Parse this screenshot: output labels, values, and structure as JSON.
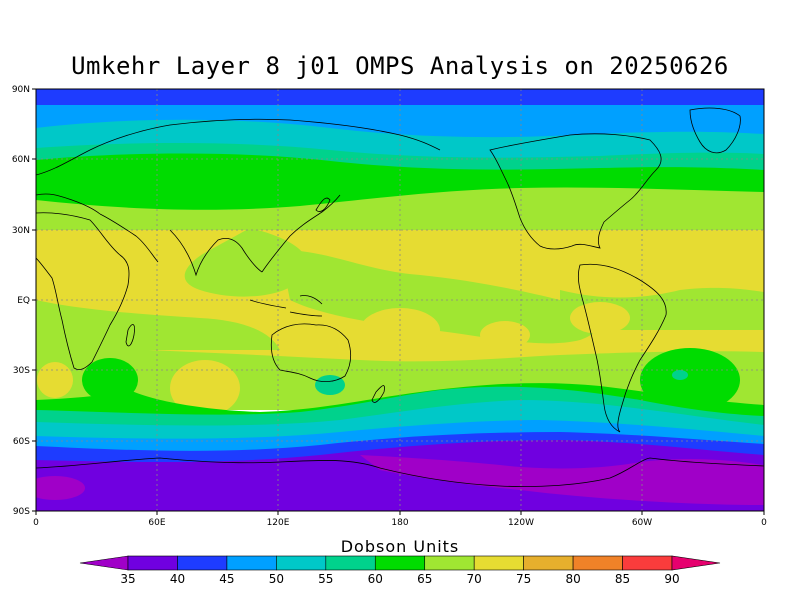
{
  "title": "Umkehr Layer 8 j01 OMPS Analysis on 20250626",
  "axes": {
    "y_ticks": [
      "90N",
      "60N",
      "30N",
      "EQ",
      "30S",
      "60S",
      "90S"
    ],
    "x_ticks": [
      "0",
      "60E",
      "120E",
      "180",
      "120W",
      "60W",
      "0"
    ]
  },
  "colorbar": {
    "title": "Dobson Units",
    "labels": [
      "35",
      "40",
      "45",
      "50",
      "55",
      "60",
      "65",
      "70",
      "75",
      "80",
      "85",
      "90"
    ],
    "colors": [
      "#a000c8",
      "#7000e0",
      "#1e3cff",
      "#00a0ff",
      "#00c8c8",
      "#00d28c",
      "#00dc00",
      "#a0e632",
      "#e6dc32",
      "#e6af2d",
      "#f08228",
      "#fa3c3c",
      "#e6006e"
    ]
  },
  "chart_data": {
    "type": "heatmap",
    "title": "Umkehr Layer 8 j01 OMPS Analysis on 20250626",
    "units": "Dobson Units",
    "xlim": [
      0,
      360
    ],
    "ylim": [
      -90,
      90
    ],
    "x_ticks": [
      "0",
      "60E",
      "120E",
      "180",
      "120W",
      "60W",
      "0"
    ],
    "y_ticks": [
      "90N",
      "60N",
      "30N",
      "EQ",
      "30S",
      "60S",
      "90S"
    ],
    "levels": [
      35,
      40,
      45,
      50,
      55,
      60,
      65,
      70,
      75,
      80,
      85,
      90
    ],
    "zonal_bands": [
      {
        "lat_range": [
          80,
          90
        ],
        "value_range": [
          40,
          45
        ]
      },
      {
        "lat_range": [
          70,
          80
        ],
        "value_range": [
          50,
          55
        ]
      },
      {
        "lat_range": [
          60,
          70
        ],
        "value_range": [
          55,
          60
        ]
      },
      {
        "lat_range": [
          45,
          60
        ],
        "value_range": [
          60,
          65
        ]
      },
      {
        "lat_range": [
          30,
          45
        ],
        "value_range": [
          65,
          70
        ]
      },
      {
        "lat_range": [
          -10,
          30
        ],
        "value_range": [
          70,
          75
        ]
      },
      {
        "lat_range": [
          -35,
          -10
        ],
        "value_range": [
          65,
          75
        ]
      },
      {
        "lat_range": [
          -45,
          -35
        ],
        "value_range": [
          60,
          65
        ]
      },
      {
        "lat_range": [
          -60,
          -45
        ],
        "value_range": [
          45,
          60
        ]
      },
      {
        "lat_range": [
          -90,
          -60
        ],
        "value_range": [
          35,
          45
        ]
      }
    ],
    "grid": true
  }
}
